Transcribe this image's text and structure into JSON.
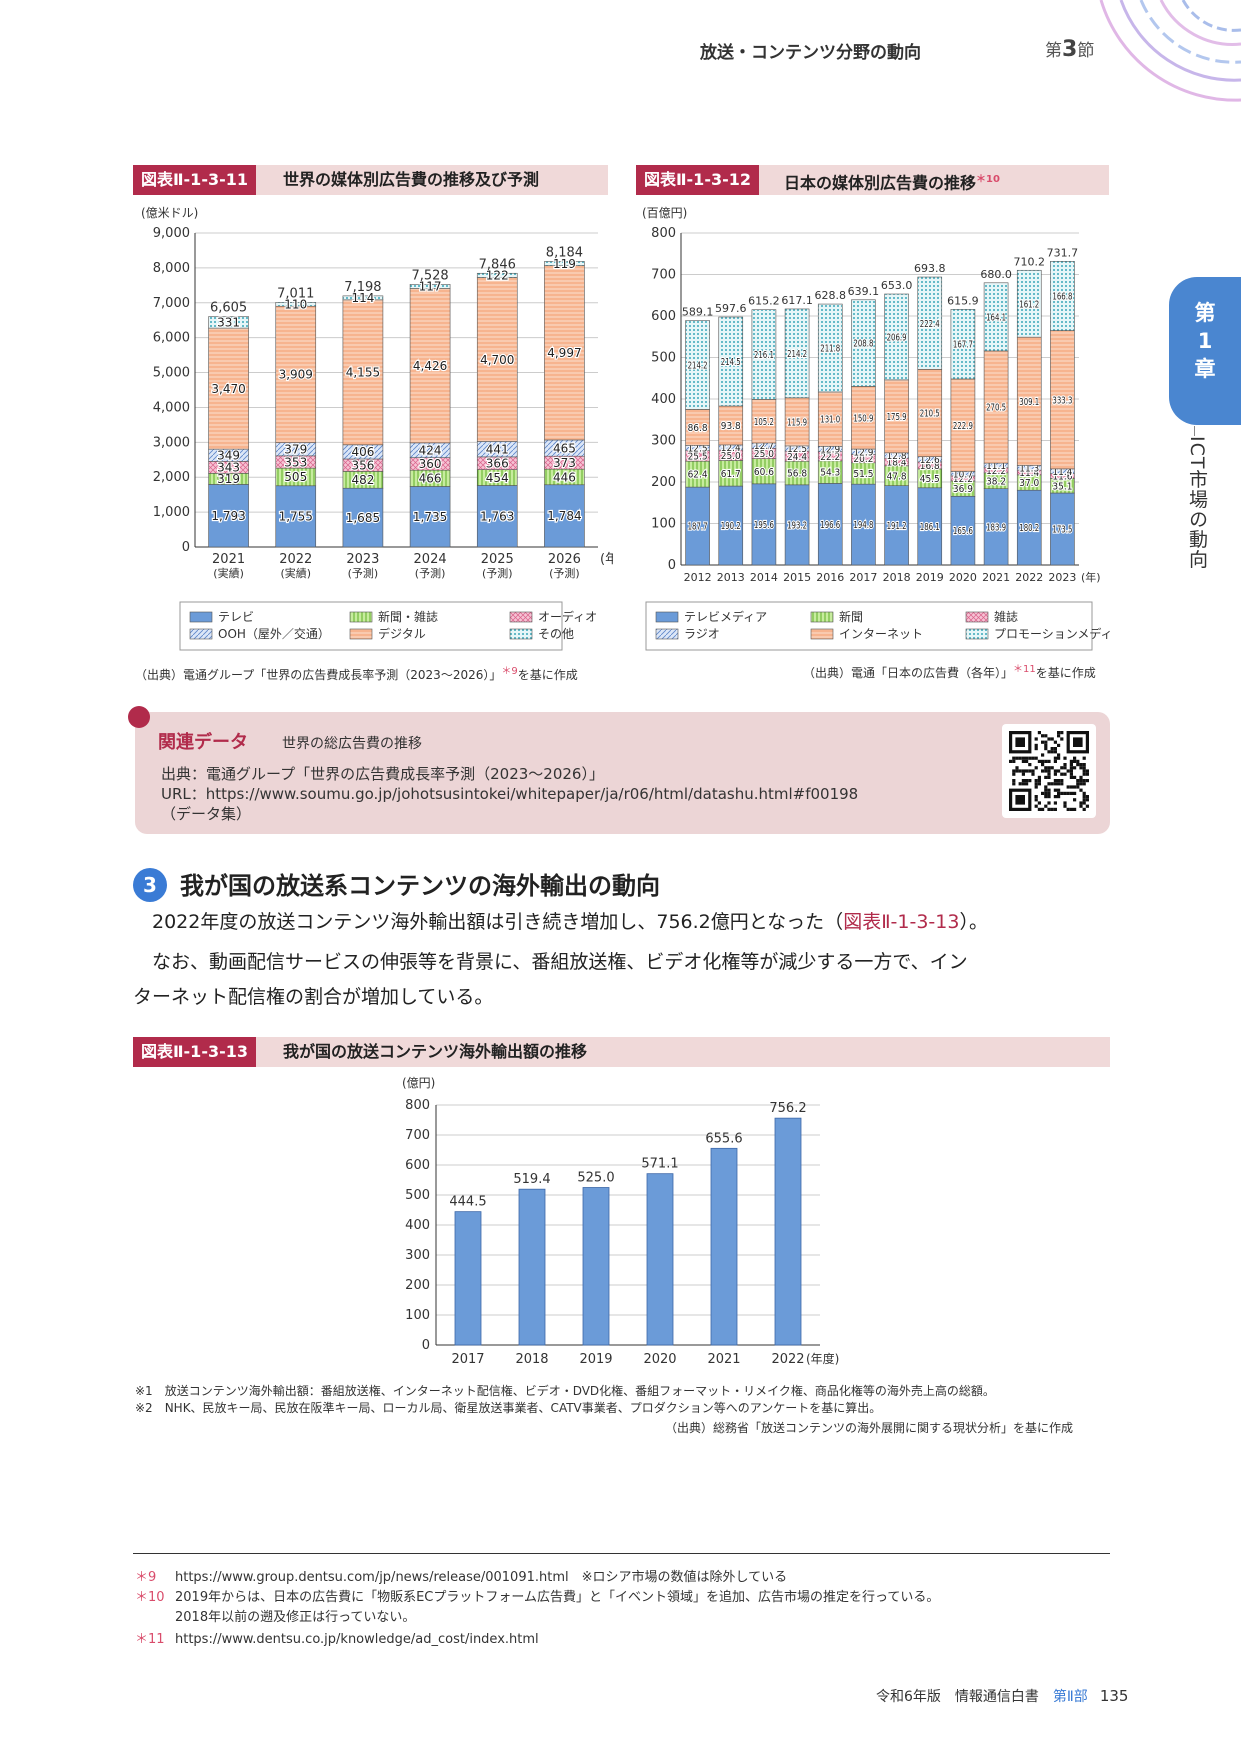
{
  "header": {
    "title": "放送・コンテンツ分野の動向",
    "section_prefix": "第",
    "section_num": "3",
    "section_suffix": "節"
  },
  "chapter_tab": {
    "line1": "第",
    "line2": "1",
    "line3": "章",
    "vertical": "ICT市場の動向"
  },
  "fig11": {
    "tag": "図表Ⅱ-1-3-11",
    "title": "世界の媒体別広告費の推移及び予測",
    "unit": "(億米ドル)",
    "source": "（出典）電通グループ「世界の広告費成長率予測（2023～2026）」",
    "source_mark": "＊9",
    "source_suffix": "を基に作成",
    "legend": [
      "テレビ",
      "新聞・雑誌",
      "オーディオ",
      "OOH（屋外／交通）",
      "デジタル",
      "その他"
    ]
  },
  "fig12": {
    "tag": "図表Ⅱ-1-3-12",
    "title": "日本の媒体別広告費の推移",
    "title_mark": "＊10",
    "unit": "(百億円)",
    "source": "（出典）電通「日本の広告費（各年）」",
    "source_mark": "＊11",
    "source_suffix": "を基に作成",
    "legend": [
      "テレビメディア",
      "新聞",
      "雑誌",
      "ラジオ",
      "インターネット",
      "プロモーションメディア"
    ]
  },
  "related": {
    "label": "関連データ",
    "title": "世界の総広告費の推移",
    "source": "出典：電通グループ「世界の広告費成長率予測（2023～2026）」",
    "url": "URL：https://www.soumu.go.jp/johotsusintokei/whitepaper/ja/r06/html/datashu.html#f00198",
    "note": "（データ集）"
  },
  "section": {
    "num": "3",
    "heading": "我が国の放送系コンテンツの海外輸出の動向",
    "p1_a": "2022年度の放送コンテンツ海外輸出額は引き続き増加し、756.2億円となった（",
    "p1_ref": "図表Ⅱ-1-3-13",
    "p1_b": "）。",
    "p2_a": "なお、動画配信サービスの伸張等を背景に、番組放送権、ビデオ化権等が減少する一方で、イン",
    "p2_b": "ターネット配信権の割合が増加している。"
  },
  "fig13": {
    "tag": "図表Ⅱ-1-3-13",
    "title": "我が国の放送コンテンツ海外輸出額の推移",
    "unit": "(億円)",
    "note1": "※1　放送コンテンツ海外輸出額：番組放送権、インターネット配信権、ビデオ・DVD化権、番組フォーマット・リメイク権、商品化権等の海外売上高の総額。",
    "note2": "※2　NHK、民放キー局、民放在阪準キー局、ローカル局、衛星放送事業者、CATV事業者、プロダクション等へのアンケートを基に算出。",
    "source": "（出典）総務省「放送コンテンツの海外展開に関する現状分析」を基に作成"
  },
  "chart_data": [
    {
      "type": "bar",
      "stacked": true,
      "title": "世界の媒体別広告費の推移及び予測",
      "ylabel": "(億米ドル)",
      "ylim": [
        0,
        9000
      ],
      "yticks": [
        "0",
        "1,000",
        "2,000",
        "3,000",
        "4,000",
        "5,000",
        "6,000",
        "7,000",
        "8,000",
        "9,000"
      ],
      "categories": [
        "2021",
        "2022",
        "2023",
        "2024",
        "2025",
        "2026"
      ],
      "category_sub": [
        "(実績)",
        "(実績)",
        "(予測)",
        "(予測)",
        "(予測)",
        "(予測)"
      ],
      "x_unit": "(年)",
      "series": [
        {
          "name": "テレビ",
          "color": "#6b9bd8",
          "values": [
            1793,
            1755,
            1685,
            1735,
            1763,
            1784
          ],
          "labels": [
            "1,793",
            "1,755",
            "1,685",
            "1,735",
            "1,763",
            "1,784"
          ]
        },
        {
          "name": "新聞・雑誌",
          "color": "#a6dc6a",
          "values": [
            319,
            505,
            482,
            466,
            454,
            446
          ],
          "labels": [
            "319",
            "505",
            "482",
            "466",
            "454",
            "446"
          ]
        },
        {
          "name": "オーディオ",
          "color": "#f2a6c0",
          "values": [
            343,
            353,
            356,
            360,
            366,
            373
          ],
          "labels": [
            "343",
            "353",
            "356",
            "360",
            "366",
            "373"
          ]
        },
        {
          "name": "OOH（屋外／交通）",
          "color": "#b9cdee",
          "values": [
            349,
            379,
            406,
            424,
            441,
            465
          ],
          "labels": [
            "349",
            "379",
            "406",
            "424",
            "441",
            "465"
          ]
        },
        {
          "name": "デジタル",
          "color": "#f4a77e",
          "values": [
            3470,
            3909,
            4155,
            4426,
            4700,
            4997
          ],
          "labels": [
            "3,470",
            "3,909",
            "4,155",
            "4,426",
            "4,700",
            "4,997"
          ]
        },
        {
          "name": "その他",
          "color": "#7fd3dc",
          "values": [
            331,
            110,
            114,
            117,
            122,
            119
          ],
          "labels": [
            "331",
            "110",
            "114",
            "117",
            "122",
            "119"
          ]
        }
      ],
      "totals": [
        "6,605",
        "7,011",
        "7,198",
        "7,528",
        "7,846",
        "8,184"
      ]
    },
    {
      "type": "bar",
      "stacked": true,
      "title": "日本の媒体別広告費の推移",
      "ylabel": "(百億円)",
      "ylim": [
        0,
        800
      ],
      "yticks": [
        "0",
        "100",
        "200",
        "300",
        "400",
        "500",
        "600",
        "700",
        "800"
      ],
      "categories": [
        "2012",
        "2013",
        "2014",
        "2015",
        "2016",
        "2017",
        "2018",
        "2019",
        "2020",
        "2021",
        "2022",
        "2023"
      ],
      "x_unit": "(年)",
      "series": [
        {
          "name": "テレビメディア",
          "color": "#6b9bd8",
          "values": [
            187.7,
            190.2,
            195.6,
            193.2,
            196.6,
            194.8,
            191.2,
            186.1,
            165.6,
            183.9,
            180.2,
            173.5
          ]
        },
        {
          "name": "新聞",
          "color": "#a6dc6a",
          "values": [
            62.4,
            61.7,
            60.6,
            56.8,
            54.3,
            51.5,
            47.8,
            45.5,
            36.9,
            38.2,
            37.0,
            35.1
          ]
        },
        {
          "name": "雑誌",
          "color": "#f2a6c0",
          "values": [
            25.5,
            25.0,
            25.0,
            24.4,
            22.2,
            20.2,
            18.4,
            16.8,
            12.2,
            12.2,
            11.4,
            11.6
          ]
        },
        {
          "name": "ラジオ",
          "color": "#b9cdee",
          "values": [
            12.5,
            12.4,
            12.7,
            12.5,
            12.9,
            12.9,
            12.8,
            12.6,
            10.7,
            11.1,
            11.3,
            11.4
          ]
        },
        {
          "name": "インターネット",
          "color": "#f4a77e",
          "values": [
            86.8,
            93.8,
            105.2,
            115.9,
            131.0,
            150.9,
            175.9,
            210.5,
            222.9,
            270.5,
            309.1,
            333.3
          ]
        },
        {
          "name": "プロモーションメディア",
          "color": "#7fd3dc",
          "values": [
            214.2,
            214.5,
            216.1,
            214.2,
            211.8,
            208.8,
            206.9,
            222.4,
            167.7,
            164.1,
            161.2,
            166.8
          ]
        }
      ],
      "totals": [
        "589.1",
        "597.6",
        "615.2",
        "617.1",
        "628.8",
        "639.1",
        "653.0",
        "693.8",
        "615.9",
        "680.0",
        "710.2",
        "731.7"
      ]
    },
    {
      "type": "bar",
      "title": "我が国の放送コンテンツ海外輸出額の推移",
      "ylabel": "(億円)",
      "ylim": [
        0,
        800
      ],
      "yticks": [
        "0",
        "100",
        "200",
        "300",
        "400",
        "500",
        "600",
        "700",
        "800"
      ],
      "categories": [
        "2017",
        "2018",
        "2019",
        "2020",
        "2021",
        "2022"
      ],
      "x_unit": "(年度)",
      "color": "#6b9bd8",
      "values": [
        444.5,
        519.4,
        525.0,
        571.1,
        655.6,
        756.2
      ],
      "labels": [
        "444.5",
        "519.4",
        "525.0",
        "571.1",
        "655.6",
        "756.2"
      ]
    }
  ],
  "footnotes": [
    {
      "mark": "＊9",
      "text": "https://www.group.dentsu.com/jp/news/release/001091.html　※ロシア市場の数値は除外している"
    },
    {
      "mark": "＊10",
      "text": "2019年からは、日本の広告費に「物販系ECプラットフォーム広告費」と「イベント領域」を追加、広告市場の推定を行っている。"
    },
    {
      "mark": "",
      "text": "2018年以前の遡及修正は行っていない。"
    },
    {
      "mark": "＊11",
      "text": "https://www.dentsu.co.jp/knowledge/ad_cost/index.html"
    }
  ],
  "page_footer": {
    "text": "令和6年版　情報通信白書",
    "part": "第Ⅱ部",
    "page": "135"
  }
}
